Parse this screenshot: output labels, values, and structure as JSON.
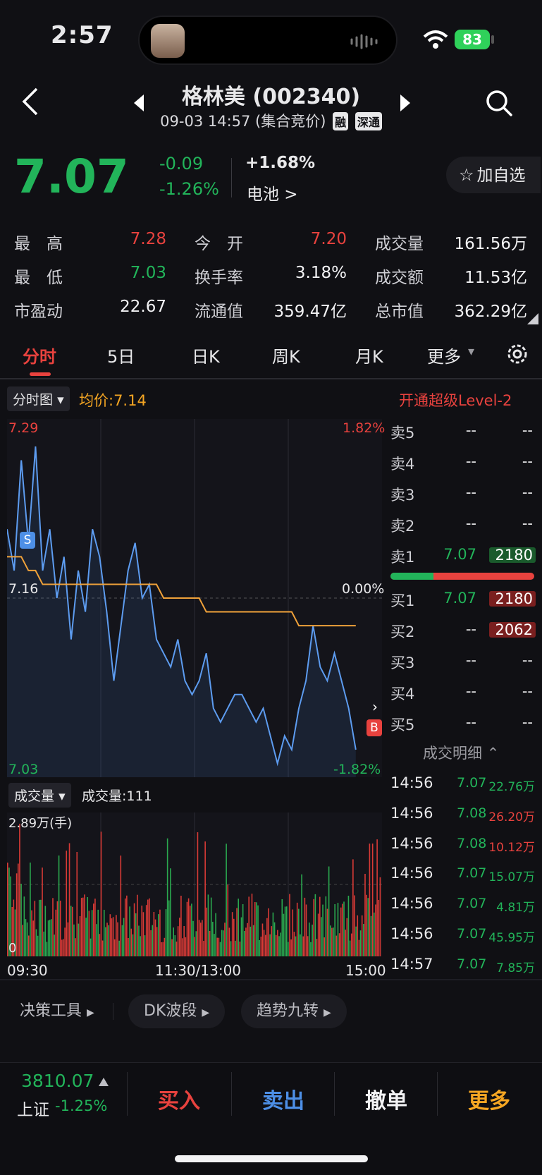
{
  "status": {
    "time": "2:57",
    "battery": "83"
  },
  "header": {
    "title": "格林美 (002340)",
    "subtitle": "09-03 14:57 (集合竞价)",
    "tags": [
      "融",
      "深通"
    ]
  },
  "quote": {
    "price": "7.07",
    "change": "-0.09",
    "change_pct": "-1.26%",
    "sector_pct": "+1.68%",
    "sector_name": "电池 >",
    "favorite_label": "加自选"
  },
  "stats": [
    {
      "label": "最　高",
      "value": "7.28",
      "color": "#e8423e"
    },
    {
      "label": "今　开",
      "value": "7.20",
      "color": "#e8423e"
    },
    {
      "label": "成交量",
      "value": "161.56万",
      "color": "#f2f2f4"
    },
    {
      "label": "最　低",
      "value": "7.03",
      "color": "#22b45a"
    },
    {
      "label": "换手率",
      "value": "3.18%",
      "color": "#f2f2f4"
    },
    {
      "label": "成交额",
      "value": "11.53亿",
      "color": "#f2f2f4"
    },
    {
      "label": "市盈动",
      "value": "22.67",
      "color": "#f2f2f4"
    },
    {
      "label": "流通值",
      "value": "359.47亿",
      "color": "#f2f2f4"
    },
    {
      "label": "总市值",
      "value": "362.29亿",
      "color": "#f2f2f4"
    }
  ],
  "tabs": [
    "分时",
    "5日",
    "日K",
    "周K",
    "月K",
    "更多"
  ],
  "chart": {
    "mode_chip": "分时图",
    "avg_label": "均价:7.14",
    "level2_label": "开通超级Level-2",
    "price_high": "7.29",
    "price_mid": "7.16",
    "price_low": "7.03",
    "pct_high": "1.82%",
    "pct_mid": "0.00%",
    "pct_low": "-1.82%",
    "sell_marker": "S",
    "buy_marker": "B",
    "vol_chip": "成交量",
    "vol_label": "成交量:111",
    "vol_max": "2.89万(手)",
    "vol_zero": "0",
    "time_start": "09:30",
    "time_mid": "11:30/13:00",
    "time_end": "15:00"
  },
  "chart_data": {
    "type": "line",
    "ylim": [
      7.03,
      7.29
    ],
    "ylabel": "",
    "xlabel": "",
    "series": [
      {
        "values": [
          7.21,
          7.18,
          7.26,
          7.2,
          7.27,
          7.18,
          7.21,
          7.16,
          7.19,
          7.13,
          7.18,
          7.15,
          7.21,
          7.19,
          7.15,
          7.1,
          7.14,
          7.18,
          7.2,
          7.16,
          7.17,
          7.13,
          7.12,
          7.11,
          7.13,
          7.1,
          7.09,
          7.1,
          7.12,
          7.08,
          7.07,
          7.08,
          7.09,
          7.09,
          7.08,
          7.07,
          7.08,
          7.06,
          7.04,
          7.06,
          7.05,
          7.08,
          7.1,
          7.14,
          7.11,
          7.1,
          7.12,
          7.1,
          7.08,
          7.05
        ]
      },
      {
        "values": [
          7.19,
          7.19,
          7.19,
          7.18,
          7.18,
          7.17,
          7.17,
          7.17,
          7.17,
          7.17,
          7.17,
          7.17,
          7.17,
          7.17,
          7.17,
          7.17,
          7.17,
          7.17,
          7.17,
          7.17,
          7.17,
          7.17,
          7.16,
          7.16,
          7.16,
          7.16,
          7.16,
          7.16,
          7.15,
          7.15,
          7.15,
          7.15,
          7.15,
          7.15,
          7.15,
          7.15,
          7.15,
          7.15,
          7.15,
          7.15,
          7.15,
          7.14,
          7.14,
          7.14,
          7.14,
          7.14,
          7.14,
          7.14,
          7.14,
          7.14
        ]
      }
    ]
  },
  "orderbook": {
    "sells": [
      {
        "label": "卖5",
        "price": "--",
        "vol": "--"
      },
      {
        "label": "卖4",
        "price": "--",
        "vol": "--"
      },
      {
        "label": "卖3",
        "price": "--",
        "vol": "--"
      },
      {
        "label": "卖2",
        "price": "--",
        "vol": "--"
      },
      {
        "label": "卖1",
        "price": "7.07",
        "vol": "2180"
      }
    ],
    "buys": [
      {
        "label": "买1",
        "price": "7.07",
        "vol": "2180"
      },
      {
        "label": "买2",
        "price": "--",
        "vol": "2062"
      },
      {
        "label": "买3",
        "price": "--",
        "vol": "--"
      },
      {
        "label": "买4",
        "price": "--",
        "vol": "--"
      },
      {
        "label": "买5",
        "price": "--",
        "vol": "--"
      }
    ],
    "bid_ratio": 0.3,
    "details_label": "成交明细"
  },
  "trades": [
    {
      "time": "14:56",
      "price": "7.07",
      "vol": "22.76万",
      "pc": "#22b45a",
      "vc": "#22b45a"
    },
    {
      "time": "14:56",
      "price": "7.08",
      "vol": "26.20万",
      "pc": "#22b45a",
      "vc": "#e8423e"
    },
    {
      "time": "14:56",
      "price": "7.08",
      "vol": "10.12万",
      "pc": "#22b45a",
      "vc": "#e8423e"
    },
    {
      "time": "14:56",
      "price": "7.07",
      "vol": "15.07万",
      "pc": "#22b45a",
      "vc": "#22b45a"
    },
    {
      "time": "14:56",
      "price": "7.07",
      "vol": "4.81万",
      "pc": "#22b45a",
      "vc": "#22b45a"
    },
    {
      "time": "14:56",
      "price": "7.07",
      "vol": "45.95万",
      "pc": "#22b45a",
      "vc": "#22b45a"
    },
    {
      "time": "14:57",
      "price": "7.07",
      "vol": "7.85万",
      "pc": "#22b45a",
      "vc": "#22b45a"
    }
  ],
  "tools": [
    "决策工具",
    "DK波段",
    "趋势九转"
  ],
  "bottom": {
    "index_value": "3810.07",
    "index_name": "上证",
    "index_pct": "-1.25%",
    "buy": "买入",
    "sell": "卖出",
    "cancel": "撤单",
    "more": "更多"
  }
}
